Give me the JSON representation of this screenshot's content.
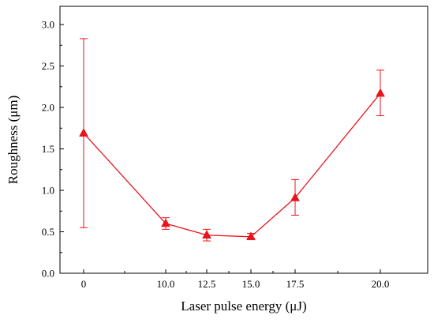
{
  "chart_data": {
    "type": "line",
    "title": "",
    "xlabel": "Laser pulse energy (μJ)",
    "ylabel": "Roughness (μm)",
    "categories": [
      "0",
      "10.0",
      "12.5",
      "15.0",
      "17.5",
      "20.0"
    ],
    "y_ticks": [
      "0.0",
      "0.5",
      "1.0",
      "1.5",
      "2.0",
      "2.5",
      "3.0"
    ],
    "ylim": [
      0,
      3.0
    ],
    "grid": false,
    "legend": "none",
    "marker": "triangle",
    "color": "#e8141b",
    "series": [
      {
        "values": [
          1.69,
          0.6,
          0.46,
          0.44,
          0.91,
          2.17
        ],
        "err_low": [
          0.55,
          0.53,
          0.39,
          0.42,
          0.7,
          1.9
        ],
        "err_high": [
          2.83,
          0.67,
          0.53,
          0.48,
          1.13,
          2.45
        ]
      }
    ]
  }
}
